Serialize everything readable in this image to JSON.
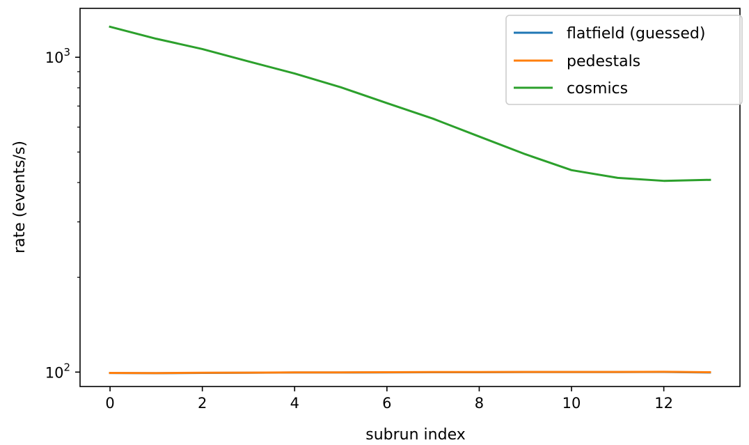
{
  "chart_data": {
    "type": "line",
    "xlabel": "subrun index",
    "ylabel": "rate (events/s)",
    "xlim": [
      -0.65,
      13.65
    ],
    "ylim": [
      90,
      1430
    ],
    "yscale": "log",
    "xticks": [
      0,
      2,
      4,
      6,
      8,
      10,
      12
    ],
    "x_tick_labels": [
      "0",
      "2",
      "4",
      "6",
      "8",
      "10",
      "12"
    ],
    "y_major_ticks": [
      {
        "value": 100,
        "base": "10",
        "exp": "2"
      },
      {
        "value": 1000,
        "base": "10",
        "exp": "3"
      }
    ],
    "y_minor_ticks": [
      200,
      300,
      400,
      500,
      600,
      700,
      800,
      900
    ],
    "grid": false,
    "legend_position": "top-right",
    "x": [
      0,
      1,
      2,
      3,
      4,
      5,
      6,
      7,
      8,
      9,
      10,
      11,
      12,
      13
    ],
    "series": [
      {
        "name": "flatfield (guessed)",
        "color": "#1f77b4",
        "values": [
          99.3,
          99.2,
          99.4,
          99.5,
          99.7,
          99.7,
          99.8,
          99.9,
          99.9,
          100.0,
          100.0,
          100.0,
          100.1,
          99.7
        ]
      },
      {
        "name": "pedestals",
        "color": "#ff7f0e",
        "values": [
          99.4,
          99.3,
          99.5,
          99.6,
          99.8,
          99.8,
          99.9,
          100.0,
          100.0,
          100.1,
          100.1,
          100.1,
          100.2,
          99.9
        ]
      },
      {
        "name": "cosmics",
        "color": "#2ca02c",
        "values": [
          1250,
          1145,
          1062,
          970,
          888,
          803,
          715,
          638,
          560,
          492,
          438,
          414,
          405,
          408
        ]
      }
    ]
  }
}
